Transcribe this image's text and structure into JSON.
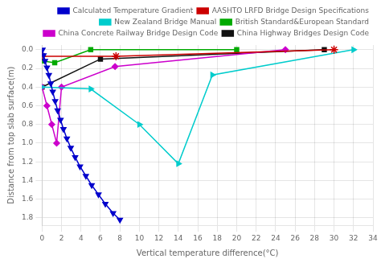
{
  "chart_data": {
    "type": "line",
    "xlabel": "Vertical temperature difference(°C)",
    "ylabel": "Distance from top slab surface(m)",
    "xlim": [
      0,
      34
    ],
    "ylim": [
      1.88,
      -0.05
    ],
    "xticks": [
      0,
      2,
      4,
      6,
      8,
      10,
      12,
      14,
      16,
      18,
      20,
      22,
      24,
      26,
      28,
      30,
      32,
      34
    ],
    "yticks": [
      {
        "value": 0,
        "label": "0.0"
      },
      0.2,
      0.4,
      0.6,
      0.8,
      {
        "value": 1.0,
        "label": "1.0"
      },
      1.2,
      1.4,
      1.6,
      1.8
    ],
    "grid": true,
    "legend": "upper right",
    "series": [
      {
        "name": "Calculated Temperature Gradient",
        "color": "#0000cc",
        "marker": "triangle-down",
        "x": [
          0.05,
          0.15,
          0.3,
          0.5,
          0.7,
          0.9,
          1.1,
          1.35,
          1.6,
          1.9,
          2.2,
          2.55,
          2.95,
          3.4,
          3.9,
          4.5,
          5.1,
          5.8,
          6.5,
          7.3,
          8.0
        ],
        "values": [
          0.0,
          0.06,
          0.12,
          0.19,
          0.27,
          0.36,
          0.45,
          0.55,
          0.65,
          0.75,
          0.85,
          0.95,
          1.05,
          1.15,
          1.25,
          1.35,
          1.45,
          1.55,
          1.65,
          1.75,
          1.82
        ]
      },
      {
        "name": "AASHTO LRFD Bridge Design Specifications",
        "color": "#cc0000",
        "marker": "star",
        "x": [
          0.0,
          7.6,
          30.0
        ],
        "values": [
          0.07,
          0.07,
          0.0
        ]
      },
      {
        "name": "New Zealand Bridge Manual",
        "color": "#00cccc",
        "marker": "triangle-right",
        "x": [
          0.0,
          5.0,
          10.0,
          14.0,
          17.5,
          32.0
        ],
        "values": [
          0.4,
          0.42,
          0.8,
          1.22,
          0.27,
          0.0
        ]
      },
      {
        "name": "British Standard&European Standard",
        "color": "#00aa00",
        "marker": "square",
        "x": [
          0.0,
          1.3,
          5.0,
          20.0
        ],
        "values": [
          0.12,
          0.14,
          0.0,
          0.0
        ]
      },
      {
        "name": "China Concrete Railway Bridge Design Code",
        "color": "#cc00cc",
        "marker": "diamond",
        "x": [
          0.0,
          0.5,
          1.0,
          1.5,
          2.0,
          7.5,
          25.0
        ],
        "values": [
          0.4,
          0.6,
          0.8,
          1.0,
          0.4,
          0.18,
          0.0
        ]
      },
      {
        "name": "China Highway Bridges Design Code",
        "color": "#111111",
        "marker": "square",
        "x": [
          0.0,
          6.0,
          29.0
        ],
        "values": [
          0.4,
          0.1,
          0.0
        ]
      }
    ]
  }
}
